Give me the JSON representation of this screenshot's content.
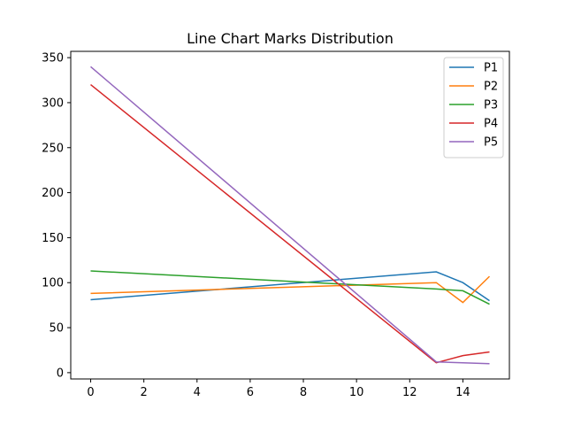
{
  "chart_data": {
    "type": "line",
    "title": "Line Chart Marks Distribution",
    "xlabel": "",
    "ylabel": "",
    "x": [
      0,
      13,
      14,
      15
    ],
    "xlim": [
      -0.75,
      15.75
    ],
    "ylim": [
      -7,
      357
    ],
    "xticks": [
      0,
      2,
      4,
      6,
      8,
      10,
      12,
      14
    ],
    "yticks": [
      0,
      50,
      100,
      150,
      200,
      250,
      300,
      350
    ],
    "grid": false,
    "legend_position": "top-right",
    "series": [
      {
        "name": "P1",
        "color": "#1f77b4",
        "values": [
          81,
          112,
          100,
          80
        ]
      },
      {
        "name": "P2",
        "color": "#ff7f0e",
        "values": [
          88,
          100,
          78,
          107
        ]
      },
      {
        "name": "P3",
        "color": "#2ca02c",
        "values": [
          113,
          93,
          91,
          76
        ]
      },
      {
        "name": "P4",
        "color": "#d62728",
        "values": [
          320,
          11,
          19,
          23
        ]
      },
      {
        "name": "P5",
        "color": "#9467bd",
        "values": [
          340,
          12,
          11,
          10
        ]
      }
    ]
  }
}
